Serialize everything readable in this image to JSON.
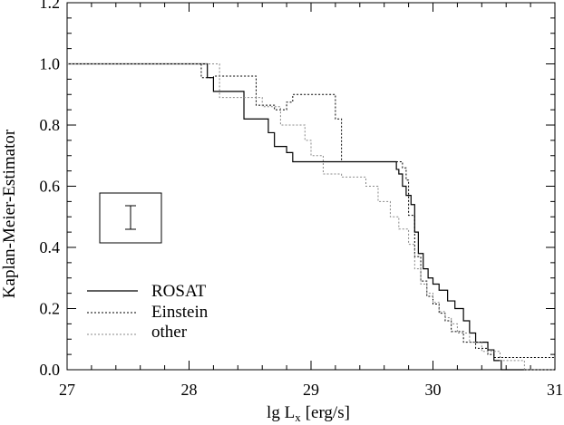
{
  "chart_data": {
    "type": "line",
    "xlabel": "lg L",
    "xlabel_sub": "x",
    "xlabel_unit": "[erg/s]",
    "ylabel": "Kaplan-Meier-Estimator",
    "xlim": [
      27,
      31
    ],
    "ylim": [
      0.0,
      1.2
    ],
    "x_ticks": [
      "27",
      "28",
      "29",
      "30",
      "31"
    ],
    "y_ticks": [
      "0.0",
      "0.2",
      "0.4",
      "0.6",
      "0.8",
      "1.0",
      "1.2"
    ],
    "grid": false,
    "legend": "lower-left",
    "series": [
      {
        "name": "ROSAT",
        "style": "solid",
        "color": "#000000",
        "x": [
          27.0,
          28.15,
          28.2,
          28.45,
          28.65,
          28.7,
          28.8,
          28.85,
          29.7,
          29.72,
          29.75,
          29.78,
          29.82,
          29.85,
          29.88,
          29.92,
          29.96,
          30.0,
          30.05,
          30.12,
          30.18,
          30.25,
          30.3,
          30.35,
          30.45,
          30.5,
          30.56,
          31.0
        ],
        "y": [
          1.0,
          0.955,
          0.91,
          0.82,
          0.775,
          0.73,
          0.71,
          0.68,
          0.655,
          0.64,
          0.6,
          0.57,
          0.54,
          0.45,
          0.38,
          0.33,
          0.3,
          0.28,
          0.26,
          0.225,
          0.2,
          0.16,
          0.12,
          0.09,
          0.065,
          0.03,
          0.0,
          0.0
        ]
      },
      {
        "name": "Einstein",
        "style": "dotted",
        "color": "#000000",
        "x": [
          27.0,
          28.1,
          28.2,
          28.55,
          28.7,
          28.8,
          28.85,
          29.2,
          29.25,
          29.75,
          29.78,
          29.8,
          29.85,
          29.9,
          29.95,
          30.0,
          30.05,
          30.1,
          30.15,
          30.25,
          30.35,
          30.45,
          30.5,
          31.0
        ],
        "y": [
          1.0,
          0.955,
          0.96,
          0.865,
          0.85,
          0.875,
          0.9,
          0.82,
          0.68,
          0.66,
          0.62,
          0.505,
          0.37,
          0.29,
          0.24,
          0.215,
          0.185,
          0.16,
          0.125,
          0.09,
          0.07,
          0.05,
          0.04,
          0.04
        ]
      },
      {
        "name": "other",
        "style": "dotted-gray",
        "color": "#888888",
        "x": [
          27.0,
          28.25,
          28.6,
          28.75,
          28.95,
          29.0,
          29.1,
          29.25,
          29.45,
          29.55,
          29.65,
          29.72,
          29.8,
          29.85,
          29.9,
          29.95,
          30.0,
          30.05,
          30.1,
          30.15,
          30.2,
          30.3,
          30.4,
          30.55,
          30.75,
          31.0
        ],
        "y": [
          1.0,
          0.89,
          0.86,
          0.8,
          0.75,
          0.7,
          0.64,
          0.63,
          0.6,
          0.55,
          0.5,
          0.46,
          0.41,
          0.33,
          0.28,
          0.25,
          0.22,
          0.19,
          0.17,
          0.15,
          0.12,
          0.09,
          0.06,
          0.03,
          0.0,
          0.0
        ]
      }
    ]
  }
}
